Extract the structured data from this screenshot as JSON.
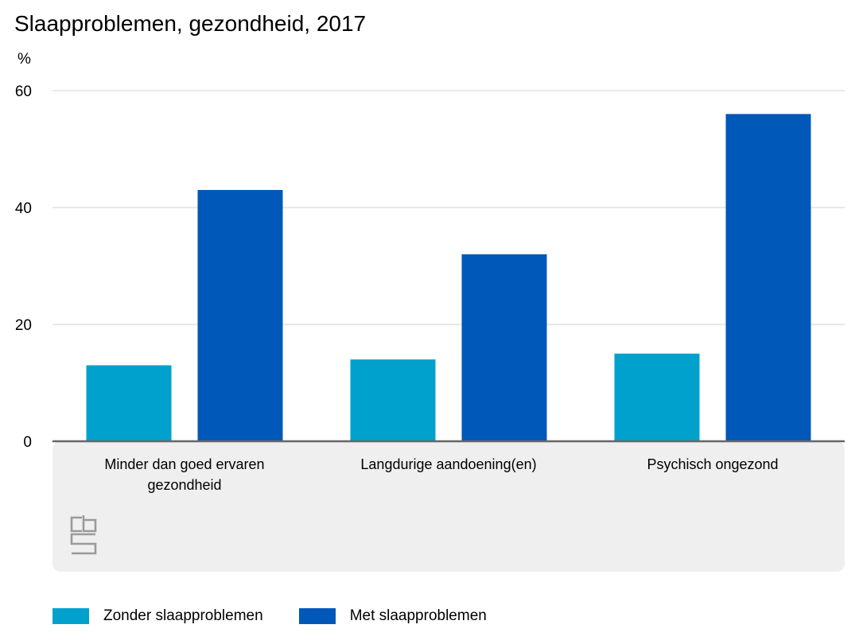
{
  "chart_data": {
    "type": "bar",
    "title": "Slaapproblemen, gezondheid, 2017",
    "unit": "%",
    "categories": [
      [
        "Minder dan goed ervaren",
        "gezondheid"
      ],
      [
        "Langdurige aandoening(en)"
      ],
      [
        "Psychisch ongezond"
      ]
    ],
    "series": [
      {
        "name": "Zonder slaapproblemen",
        "color": "#00a1cd",
        "values": [
          13,
          14,
          15
        ]
      },
      {
        "name": "Met slaapproblemen",
        "color": "#0058b8",
        "values": [
          43,
          32,
          56
        ]
      }
    ],
    "yticks": [
      0,
      20,
      40,
      60
    ],
    "ylim": [
      0,
      60
    ],
    "grid": true,
    "legend_position": "bottom-left"
  },
  "logo": {
    "icon": "cbs-logo-icon",
    "text": "cbs"
  }
}
